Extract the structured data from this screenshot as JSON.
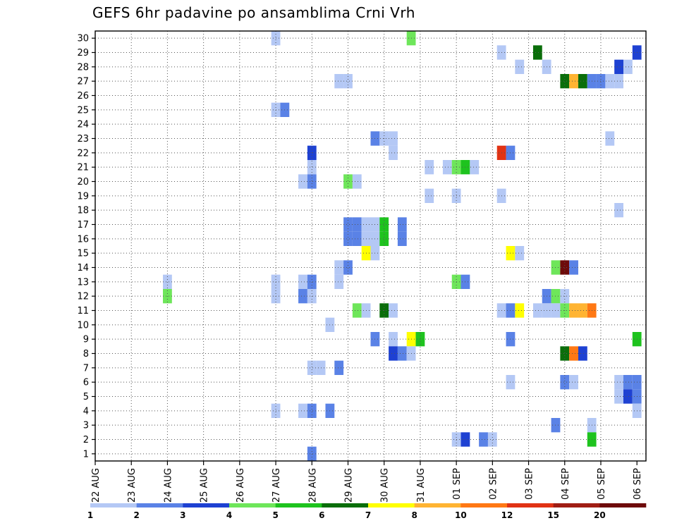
{
  "chart_data": {
    "type": "heatmap",
    "title": "GEFS 6hr padavine po ansamblima Crni Vrh",
    "xlabel": "",
    "ylabel": "",
    "x_ticks": [
      "22 AUG",
      "23 AUG",
      "24 AUG",
      "25 AUG",
      "26 AUG",
      "27 AUG",
      "28 AUG",
      "29 AUG",
      "30 AUG",
      "31 AUG",
      "01 SEP",
      "02 SEP",
      "03 SEP",
      "04 SEP",
      "05 SEP",
      "06 SEP"
    ],
    "y_ticks": [
      "1",
      "2",
      "3",
      "4",
      "5",
      "6",
      "7",
      "8",
      "9",
      "10",
      "11",
      "12",
      "13",
      "14",
      "15",
      "16",
      "17",
      "18",
      "19",
      "20",
      "21",
      "22",
      "23",
      "24",
      "25",
      "26",
      "27",
      "28",
      "29",
      "30"
    ],
    "x_unit": "6-hour steps from 22 AUG 00Z",
    "x_range": [
      0,
      61
    ],
    "y_range": [
      0.5,
      30.5
    ],
    "grid": true,
    "legend_position": "bottom",
    "legend": {
      "thresholds": [
        "1",
        "2",
        "3",
        "4",
        "5",
        "6",
        "7",
        "8",
        "10",
        "12",
        "15",
        "20"
      ],
      "colors": [
        "#b4c8f5",
        "#5a82e6",
        "#1e41d2",
        "#6ee65a",
        "#1ec31e",
        "#0a6e0a",
        "#ffff00",
        "#ffb432",
        "#ff7814",
        "#e13214",
        "#a01e14",
        "#6e0a0a"
      ]
    },
    "cells": [
      [
        20,
        30,
        0
      ],
      [
        35,
        30,
        3
      ],
      [
        45,
        29,
        0
      ],
      [
        49,
        29,
        5
      ],
      [
        60,
        29,
        2
      ],
      [
        47,
        28,
        0
      ],
      [
        50,
        28,
        0
      ],
      [
        58,
        28,
        2
      ],
      [
        59,
        28,
        0
      ],
      [
        27,
        27,
        0
      ],
      [
        28,
        27,
        0
      ],
      [
        52,
        27,
        5
      ],
      [
        53,
        27,
        7
      ],
      [
        54,
        27,
        5
      ],
      [
        55,
        27,
        1
      ],
      [
        56,
        27,
        1
      ],
      [
        57,
        27,
        0
      ],
      [
        58,
        27,
        0
      ],
      [
        20,
        25,
        0
      ],
      [
        21,
        25,
        1
      ],
      [
        31,
        23,
        1
      ],
      [
        32,
        23,
        0
      ],
      [
        33,
        23,
        0
      ],
      [
        57,
        23,
        0
      ],
      [
        24,
        22,
        2
      ],
      [
        33,
        22,
        0
      ],
      [
        45,
        22,
        9
      ],
      [
        46,
        22,
        1
      ],
      [
        24,
        21,
        0
      ],
      [
        37,
        21,
        0
      ],
      [
        39,
        21,
        0
      ],
      [
        40,
        21,
        3
      ],
      [
        41,
        21,
        4
      ],
      [
        42,
        21,
        0
      ],
      [
        23,
        20,
        0
      ],
      [
        24,
        20,
        1
      ],
      [
        28,
        20,
        3
      ],
      [
        29,
        20,
        0
      ],
      [
        37,
        19,
        0
      ],
      [
        40,
        19,
        0
      ],
      [
        45,
        19,
        0
      ],
      [
        58,
        18,
        0
      ],
      [
        28,
        17,
        1
      ],
      [
        29,
        17,
        1
      ],
      [
        30,
        17,
        0
      ],
      [
        31,
        17,
        0
      ],
      [
        32,
        17,
        4
      ],
      [
        34,
        17,
        1
      ],
      [
        28,
        16,
        1
      ],
      [
        29,
        16,
        1
      ],
      [
        30,
        16,
        0
      ],
      [
        31,
        16,
        0
      ],
      [
        32,
        16,
        4
      ],
      [
        34,
        16,
        1
      ],
      [
        30,
        15,
        6
      ],
      [
        31,
        15,
        0
      ],
      [
        46,
        15,
        6
      ],
      [
        47,
        15,
        0
      ],
      [
        27,
        14,
        0
      ],
      [
        28,
        14,
        1
      ],
      [
        51,
        14,
        3
      ],
      [
        52,
        14,
        11
      ],
      [
        53,
        14,
        1
      ],
      [
        8,
        13,
        0
      ],
      [
        20,
        13,
        0
      ],
      [
        23,
        13,
        0
      ],
      [
        24,
        13,
        1
      ],
      [
        27,
        13,
        0
      ],
      [
        40,
        13,
        3
      ],
      [
        41,
        13,
        1
      ],
      [
        8,
        12,
        3
      ],
      [
        20,
        12,
        0
      ],
      [
        23,
        12,
        1
      ],
      [
        24,
        12,
        0
      ],
      [
        50,
        12,
        1
      ],
      [
        51,
        12,
        3
      ],
      [
        52,
        12,
        0
      ],
      [
        29,
        11,
        3
      ],
      [
        30,
        11,
        0
      ],
      [
        32,
        11,
        5
      ],
      [
        33,
        11,
        0
      ],
      [
        45,
        11,
        0
      ],
      [
        46,
        11,
        1
      ],
      [
        47,
        11,
        6
      ],
      [
        49,
        11,
        0
      ],
      [
        50,
        11,
        0
      ],
      [
        51,
        11,
        0
      ],
      [
        52,
        11,
        3
      ],
      [
        53,
        11,
        7
      ],
      [
        54,
        11,
        7
      ],
      [
        55,
        11,
        8
      ],
      [
        26,
        10,
        0
      ],
      [
        31,
        9,
        1
      ],
      [
        33,
        9,
        0
      ],
      [
        35,
        9,
        6
      ],
      [
        36,
        9,
        4
      ],
      [
        46,
        9,
        1
      ],
      [
        60,
        9,
        4
      ],
      [
        33,
        8,
        2
      ],
      [
        34,
        8,
        1
      ],
      [
        35,
        8,
        0
      ],
      [
        52,
        8,
        5
      ],
      [
        53,
        8,
        8
      ],
      [
        54,
        8,
        2
      ],
      [
        24,
        7,
        0
      ],
      [
        25,
        7,
        0
      ],
      [
        27,
        7,
        1
      ],
      [
        46,
        6,
        0
      ],
      [
        52,
        6,
        1
      ],
      [
        53,
        6,
        0
      ],
      [
        58,
        6,
        0
      ],
      [
        59,
        6,
        1
      ],
      [
        60,
        6,
        1
      ],
      [
        58,
        5,
        0
      ],
      [
        59,
        5,
        2
      ],
      [
        60,
        5,
        1
      ],
      [
        20,
        4,
        0
      ],
      [
        23,
        4,
        0
      ],
      [
        24,
        4,
        1
      ],
      [
        26,
        4,
        1
      ],
      [
        60,
        4,
        0
      ],
      [
        51,
        3,
        1
      ],
      [
        55,
        3,
        0
      ],
      [
        40,
        2,
        0
      ],
      [
        41,
        2,
        2
      ],
      [
        43,
        2,
        1
      ],
      [
        44,
        2,
        0
      ],
      [
        55,
        2,
        4
      ],
      [
        24,
        1,
        1
      ]
    ]
  }
}
